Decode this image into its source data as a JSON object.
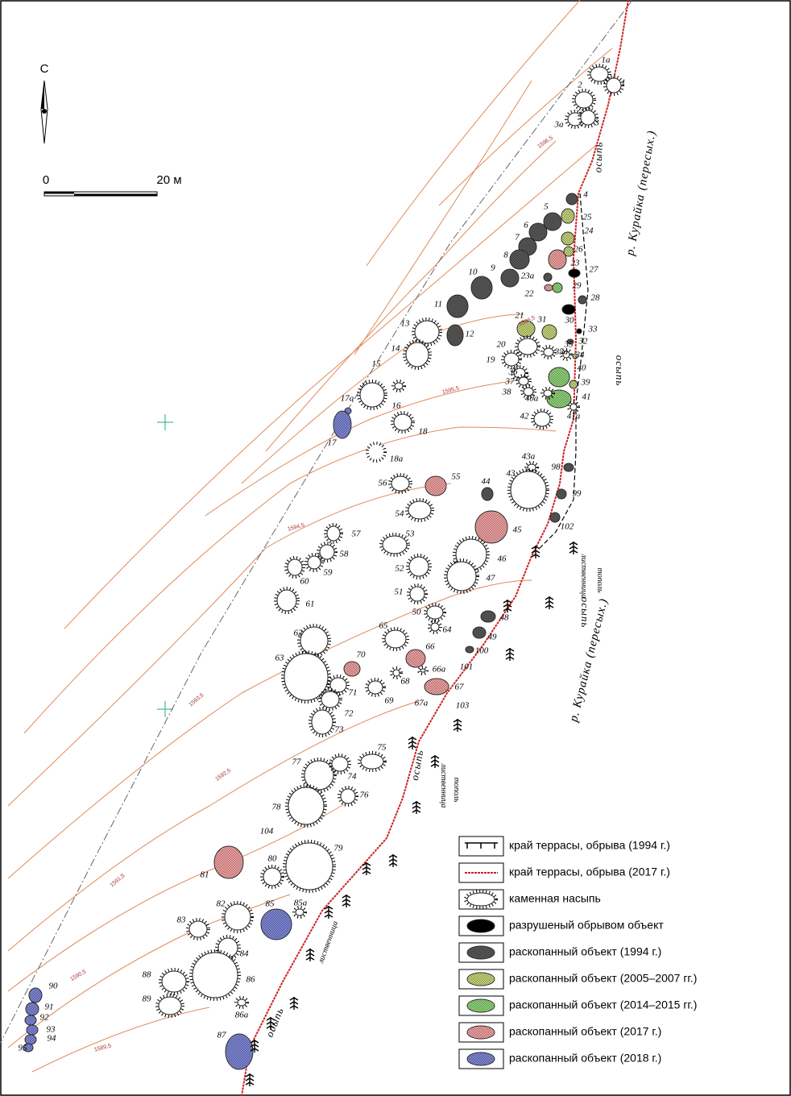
{
  "north": {
    "label": "С"
  },
  "scale": {
    "start": "0",
    "end": "20 м"
  },
  "objects": [
    {
      "label": "1а"
    },
    {
      "label": "1"
    },
    {
      "label": "2"
    },
    {
      "label": "3а"
    },
    {
      "label": "3"
    },
    {
      "label": "4"
    },
    {
      "label": "5"
    },
    {
      "label": "25"
    },
    {
      "label": "6"
    },
    {
      "label": "24"
    },
    {
      "label": "7"
    },
    {
      "label": "26"
    },
    {
      "label": "8"
    },
    {
      "label": "23"
    },
    {
      "label": "27"
    },
    {
      "label": "9"
    },
    {
      "label": "23а"
    },
    {
      "label": "22"
    },
    {
      "label": "29"
    },
    {
      "label": "10"
    },
    {
      "label": "28"
    },
    {
      "label": "30"
    },
    {
      "label": "11"
    },
    {
      "label": "21"
    },
    {
      "label": "31"
    },
    {
      "label": "13"
    },
    {
      "label": "12"
    },
    {
      "label": "33"
    },
    {
      "label": "32"
    },
    {
      "label": "14"
    },
    {
      "label": "20"
    },
    {
      "label": "35"
    },
    {
      "label": "35а"
    },
    {
      "label": "34"
    },
    {
      "label": "19"
    },
    {
      "label": "36"
    },
    {
      "label": "40"
    },
    {
      "label": "39"
    },
    {
      "label": "37"
    },
    {
      "label": "38"
    },
    {
      "label": "41"
    },
    {
      "label": "40а"
    },
    {
      "label": "41а"
    },
    {
      "label": "42"
    },
    {
      "label": "15"
    },
    {
      "label": "16"
    },
    {
      "label": "17а"
    },
    {
      "label": "17"
    },
    {
      "label": "18"
    },
    {
      "label": "18а"
    },
    {
      "label": "43а"
    },
    {
      "label": "98"
    },
    {
      "label": "56"
    },
    {
      "label": "55"
    },
    {
      "label": "44"
    },
    {
      "label": "43"
    },
    {
      "label": "99"
    },
    {
      "label": "54"
    },
    {
      "label": "45"
    },
    {
      "label": "102"
    },
    {
      "label": "57"
    },
    {
      "label": "53"
    },
    {
      "label": "58"
    },
    {
      "label": "46"
    },
    {
      "label": "59"
    },
    {
      "label": "60"
    },
    {
      "label": "52"
    },
    {
      "label": "47"
    },
    {
      "label": "51"
    },
    {
      "label": "61"
    },
    {
      "label": "50"
    },
    {
      "label": "48"
    },
    {
      "label": "65"
    },
    {
      "label": "64"
    },
    {
      "label": "62"
    },
    {
      "label": "49"
    },
    {
      "label": "66"
    },
    {
      "label": "100"
    },
    {
      "label": "63"
    },
    {
      "label": "70"
    },
    {
      "label": "66а"
    },
    {
      "label": "101"
    },
    {
      "label": "68"
    },
    {
      "label": "67"
    },
    {
      "label": "71"
    },
    {
      "label": "69"
    },
    {
      "label": "67а"
    },
    {
      "label": "103"
    },
    {
      "label": "72"
    },
    {
      "label": "73"
    },
    {
      "label": "75"
    },
    {
      "label": "77"
    },
    {
      "label": "74"
    },
    {
      "label": "76"
    },
    {
      "label": "78"
    },
    {
      "label": "104"
    },
    {
      "label": "79"
    },
    {
      "label": "81"
    },
    {
      "label": "80"
    },
    {
      "label": "85а"
    },
    {
      "label": "82"
    },
    {
      "label": "85"
    },
    {
      "label": "83"
    },
    {
      "label": "84"
    },
    {
      "label": "86"
    },
    {
      "label": "88"
    },
    {
      "label": "89"
    },
    {
      "label": "86а"
    },
    {
      "label": "87"
    },
    {
      "label": "90"
    },
    {
      "label": "91"
    },
    {
      "label": "92"
    },
    {
      "label": "93"
    },
    {
      "label": "94"
    },
    {
      "label": "95"
    }
  ],
  "river_labels": [
    "р. Курайка (пересых.)",
    "р. Курайка (пересых.)"
  ],
  "scree_labels": [
    "осыпь",
    "осыпь",
    "осыпь",
    "осыпь",
    "осыпь"
  ],
  "tree_labels": [
    "лиственница",
    "тополь",
    "лиственница",
    "тополь",
    "лиственница"
  ],
  "contour_labels": [
    "1596,5",
    "1596,5",
    "1595,5",
    "1594,5",
    "1593,5",
    "1592,5",
    "1591,5",
    "1590,5",
    "1589,5"
  ],
  "legend": [
    "край террасы, обрыва (1994 г.)",
    "край террасы, обрыва (2017 г.)",
    "каменная насыпь",
    "разрушеный обрывом объект",
    "раскопанный объект (1994 г.)",
    "раскопанный объект (2005–2007 гг.)",
    "раскопанный объект (2014–2015 гг.)",
    "раскопанный объект (2017 г.)",
    "раскопанный объект (2018 г.)"
  ]
}
